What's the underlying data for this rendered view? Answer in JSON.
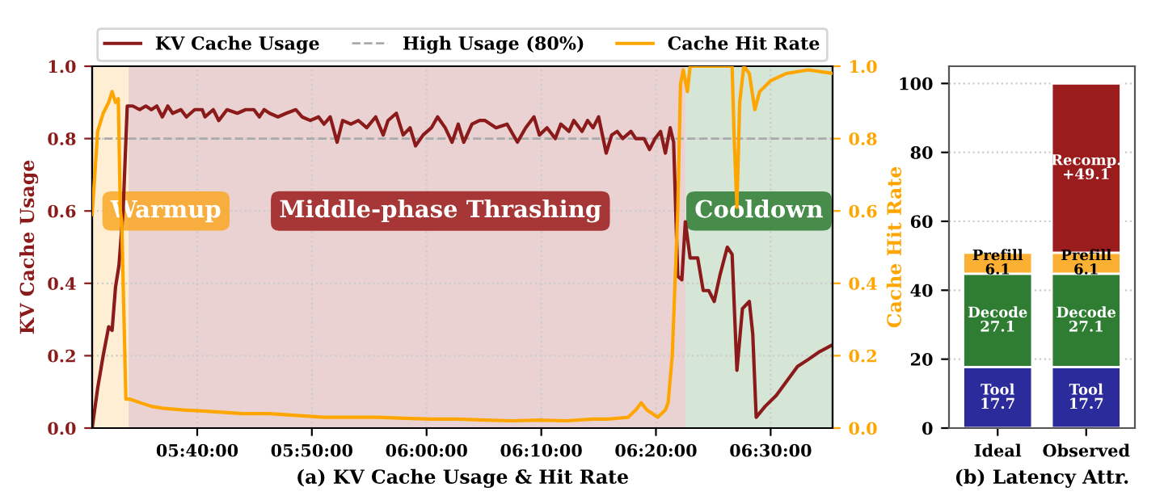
{
  "chart_data": [
    {
      "type": "line",
      "xlabel": "(a) KV Cache Usage & Hit Rate",
      "ylabel": "KV Cache Usage",
      "y2label": "Cache Hit Rate",
      "xlim": [
        5.514,
        6.59
      ],
      "xticks": [
        {
          "value": 5.6667,
          "label": "05:40:00"
        },
        {
          "value": 5.8333,
          "label": "05:50:00"
        },
        {
          "value": 6.0,
          "label": "06:00:00"
        },
        {
          "value": 6.1667,
          "label": "06:10:00"
        },
        {
          "value": 6.3333,
          "label": "06:20:00"
        },
        {
          "value": 6.5,
          "label": "06:30:00"
        }
      ],
      "ylim": [
        0.0,
        1.0
      ],
      "yticks": [
        {
          "value": 0,
          "label": "0.0"
        },
        0.2,
        0.4,
        0.6,
        0.8,
        {
          "value": 1,
          "label": "1.0"
        }
      ],
      "y2lim": [
        0.0,
        1.0
      ],
      "y2ticks": [
        {
          "value": 0,
          "label": "0.0"
        },
        0.2,
        0.4,
        0.6,
        0.8,
        {
          "value": 1,
          "label": "1.0"
        }
      ],
      "grid": true,
      "legend": "top",
      "series": [
        {
          "name": "KV Cache Usage",
          "color": "#8b1a1a",
          "x": [
            5.514,
            5.522,
            5.53,
            5.538,
            5.543,
            5.548,
            5.553,
            5.559,
            5.565,
            5.573,
            5.583,
            5.592,
            5.6,
            5.608,
            5.616,
            5.624,
            5.631,
            5.643,
            5.651,
            5.663,
            5.674,
            5.678,
            5.69,
            5.698,
            5.71,
            5.725,
            5.737,
            5.749,
            5.757,
            5.764,
            5.772,
            5.784,
            5.796,
            5.81,
            5.819,
            5.831,
            5.843,
            5.851,
            5.86,
            5.87,
            5.878,
            5.89,
            5.901,
            5.913,
            5.926,
            5.937,
            5.944,
            5.956,
            5.966,
            5.976,
            5.984,
            5.995,
            6.007,
            6.016,
            6.027,
            6.037,
            6.046,
            6.054,
            6.066,
            6.077,
            6.085,
            6.101,
            6.117,
            6.132,
            6.144,
            6.156,
            6.164,
            6.175,
            6.187,
            6.195,
            6.207,
            6.214,
            6.226,
            6.234,
            6.242,
            6.25,
            6.261,
            6.269,
            6.277,
            6.285,
            6.297,
            6.304,
            6.316,
            6.324,
            6.332,
            6.34,
            6.347,
            6.354,
            6.359,
            6.365,
            6.371,
            6.376,
            6.383,
            6.394,
            6.402,
            6.41,
            6.418,
            6.426,
            6.437,
            6.444,
            6.451,
            6.459,
            6.469,
            6.474,
            6.479,
            6.492,
            6.508,
            6.539,
            6.555,
            6.57,
            6.59
          ],
          "values": [
            0.0,
            0.11,
            0.2,
            0.28,
            0.27,
            0.39,
            0.45,
            0.6,
            0.89,
            0.89,
            0.88,
            0.89,
            0.88,
            0.89,
            0.86,
            0.89,
            0.87,
            0.88,
            0.86,
            0.88,
            0.88,
            0.86,
            0.88,
            0.85,
            0.88,
            0.87,
            0.88,
            0.88,
            0.86,
            0.88,
            0.87,
            0.86,
            0.87,
            0.88,
            0.86,
            0.85,
            0.86,
            0.84,
            0.86,
            0.79,
            0.85,
            0.84,
            0.85,
            0.83,
            0.86,
            0.81,
            0.85,
            0.87,
            0.81,
            0.83,
            0.78,
            0.81,
            0.83,
            0.86,
            0.83,
            0.79,
            0.84,
            0.79,
            0.84,
            0.85,
            0.85,
            0.83,
            0.84,
            0.79,
            0.83,
            0.86,
            0.81,
            0.83,
            0.8,
            0.84,
            0.82,
            0.85,
            0.82,
            0.85,
            0.83,
            0.86,
            0.76,
            0.81,
            0.82,
            0.8,
            0.82,
            0.8,
            0.8,
            0.77,
            0.8,
            0.82,
            0.76,
            0.83,
            0.79,
            0.42,
            0.41,
            0.57,
            0.47,
            0.47,
            0.38,
            0.38,
            0.35,
            0.42,
            0.5,
            0.48,
            0.16,
            0.33,
            0.35,
            0.26,
            0.03,
            0.06,
            0.09,
            0.17,
            0.19,
            0.21,
            0.23
          ]
        },
        {
          "name": "Cache Hit Rate",
          "color": "#ffa500",
          "axis": "y2",
          "x": [
            5.514,
            5.522,
            5.53,
            5.538,
            5.543,
            5.548,
            5.552,
            5.555,
            5.557,
            5.563,
            5.569,
            5.584,
            5.6,
            5.616,
            5.647,
            5.694,
            5.733,
            5.772,
            5.811,
            5.851,
            5.89,
            5.929,
            5.968,
            6.007,
            6.046,
            6.085,
            6.124,
            6.164,
            6.203,
            6.242,
            6.265,
            6.293,
            6.304,
            6.312,
            6.32,
            6.336,
            6.347,
            6.351,
            6.357,
            6.365,
            6.369,
            6.373,
            6.379,
            6.383,
            6.398,
            6.444,
            6.447,
            6.451,
            6.455,
            6.461,
            6.469,
            6.477,
            6.484,
            6.5,
            6.523,
            6.555,
            6.59
          ],
          "values": [
            0.59,
            0.82,
            0.87,
            0.9,
            0.93,
            0.9,
            0.91,
            0.6,
            0.57,
            0.08,
            0.08,
            0.07,
            0.06,
            0.055,
            0.05,
            0.045,
            0.04,
            0.04,
            0.035,
            0.03,
            0.03,
            0.03,
            0.027,
            0.025,
            0.025,
            0.022,
            0.02,
            0.022,
            0.02,
            0.025,
            0.025,
            0.03,
            0.05,
            0.07,
            0.05,
            0.03,
            0.05,
            0.07,
            0.2,
            0.6,
            0.95,
            0.99,
            0.93,
            1.0,
            1.0,
            1.0,
            0.8,
            0.61,
            0.9,
            1.0,
            0.98,
            0.88,
            0.93,
            0.96,
            0.98,
            0.99,
            0.98
          ]
        }
      ],
      "ref_lines": [
        {
          "axis": "y",
          "value": 0.8,
          "label": "High Usage (80%)",
          "color": "#aaaaaa",
          "line_style": "dashed"
        }
      ],
      "bands": [
        {
          "axis": "x",
          "from": 5.514,
          "to": 5.567,
          "label": "Warmup",
          "color": "#f9a825"
        },
        {
          "axis": "x",
          "from": 5.567,
          "to": 6.376,
          "label": "Middle-phase Thrashing",
          "color": "#9b1c1c"
        },
        {
          "axis": "x",
          "from": 6.376,
          "to": 6.59,
          "label": "Cooldown",
          "color": "#2e7d32"
        }
      ]
    },
    {
      "type": "bar",
      "stacked": true,
      "xlabel": "(b) Latency Attr.",
      "categories": [
        "Ideal",
        "Observed"
      ],
      "ylim": [
        0,
        105
      ],
      "yticks": [
        0,
        20,
        40,
        60,
        80,
        100
      ],
      "grid": "y",
      "series": [
        {
          "color": "#2b2b9b",
          "values": [
            17.7,
            17.7
          ],
          "value_labels": [
            "Tool\n17.7",
            "Tool\n17.7"
          ]
        },
        {
          "color": "#2e7d32",
          "values": [
            27.1,
            27.1
          ],
          "value_labels": [
            "Decode\n27.1",
            "Decode\n27.1"
          ]
        },
        {
          "color": "#fbb034",
          "values": [
            6.1,
            6.1
          ],
          "value_labels": [
            "Prefill\n6.1",
            "Prefill\n6.1"
          ]
        },
        {
          "color": "#9b1c1c",
          "values": [
            null,
            49.1
          ],
          "value_labels": [
            null,
            "Recomp.\n+49.1"
          ]
        }
      ]
    }
  ]
}
